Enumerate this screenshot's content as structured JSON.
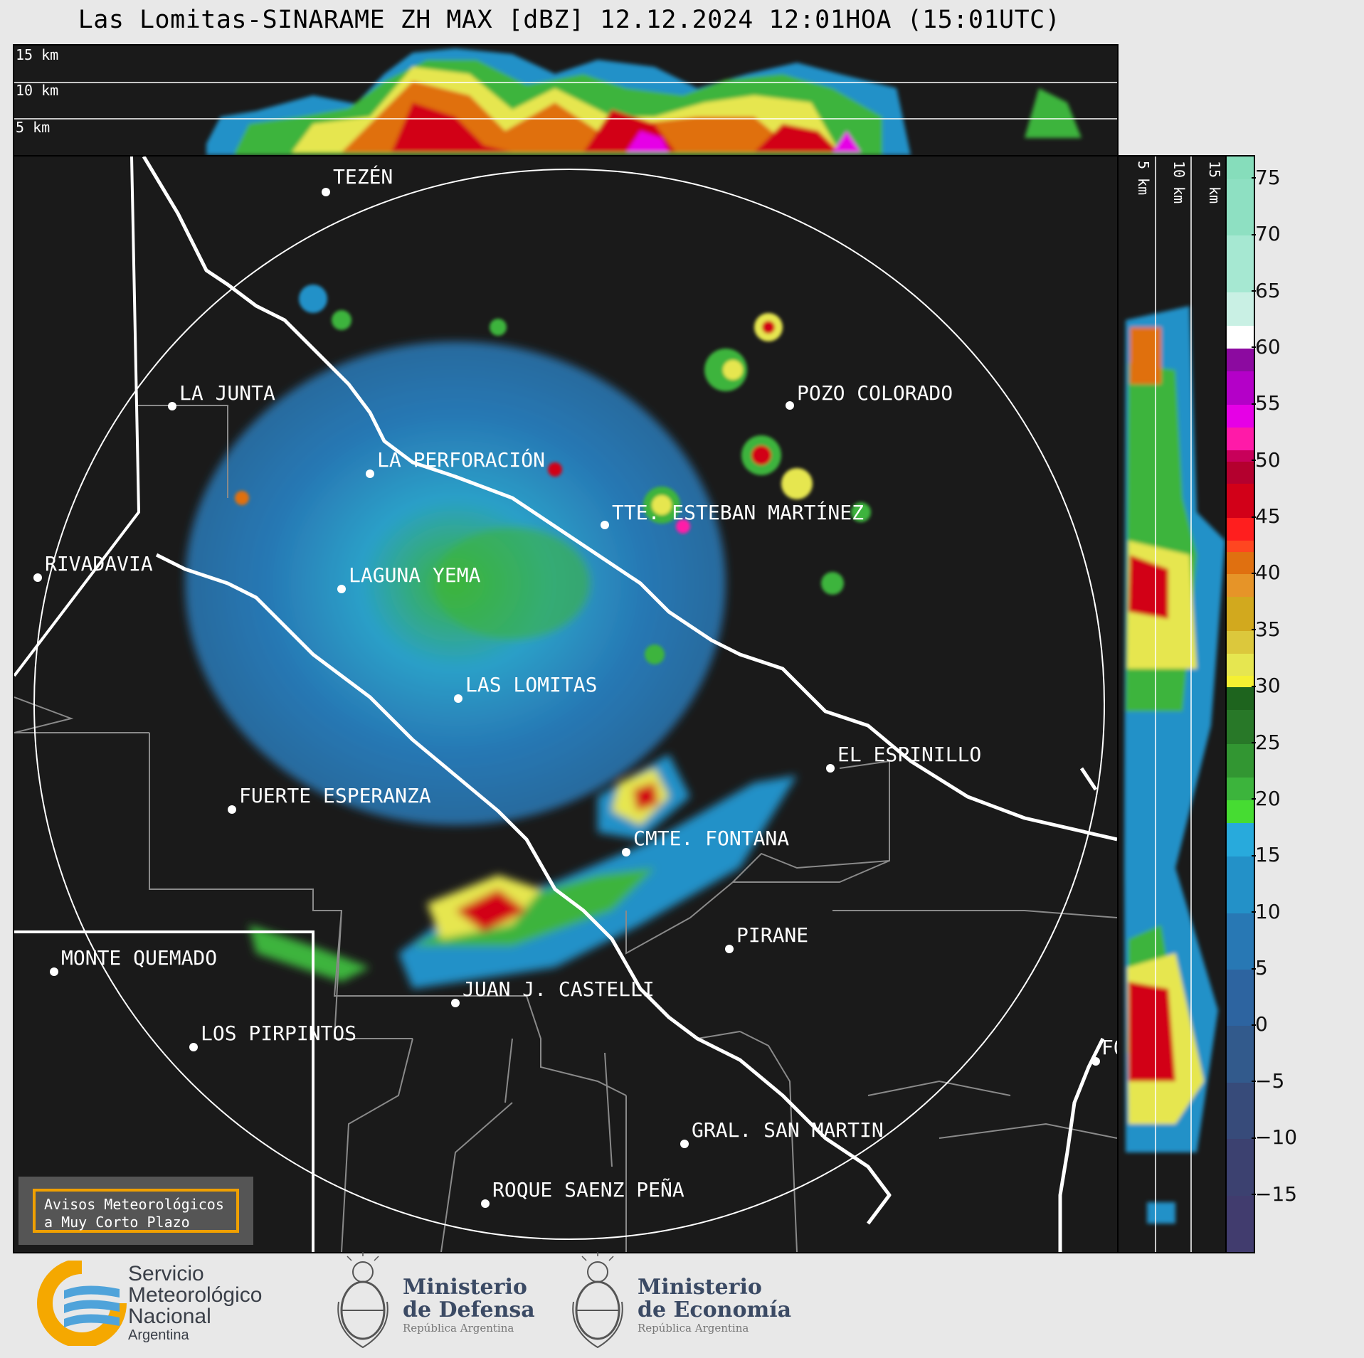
{
  "title": "Las Lomitas-SINARAME ZH MAX [dBZ] 12.12.2024 12:01HOA (15:01UTC)",
  "top_profile": {
    "height_labels": [
      "15 km",
      "10 km",
      "5 km"
    ]
  },
  "side_profile": {
    "height_labels": [
      "5 km",
      "10 km",
      "15 km"
    ]
  },
  "colorbar": {
    "ticks": [
      "75",
      "70",
      "65",
      "60",
      "55",
      "50",
      "45",
      "40",
      "35",
      "30",
      "25",
      "20",
      "15",
      "10",
      "5",
      "0",
      "−5",
      "−10",
      "−15"
    ],
    "segments": [
      {
        "from": 75,
        "to": 77,
        "color": "#86ddbb"
      },
      {
        "from": 70,
        "to": 75,
        "color": "#8ee0c2"
      },
      {
        "from": 65,
        "to": 70,
        "color": "#a6e8d2"
      },
      {
        "from": 62,
        "to": 65,
        "color": "#c9f0e4"
      },
      {
        "from": 60,
        "to": 62,
        "color": "#ffffff"
      },
      {
        "from": 58,
        "to": 60,
        "color": "#8c0aa0"
      },
      {
        "from": 55,
        "to": 58,
        "color": "#b400c8"
      },
      {
        "from": 53,
        "to": 55,
        "color": "#e600e6"
      },
      {
        "from": 51,
        "to": 53,
        "color": "#ff1aa8"
      },
      {
        "from": 50,
        "to": 51,
        "color": "#c8005a"
      },
      {
        "from": 48,
        "to": 50,
        "color": "#b4002e"
      },
      {
        "from": 45,
        "to": 48,
        "color": "#d20018"
      },
      {
        "from": 43,
        "to": 45,
        "color": "#ff1e1e"
      },
      {
        "from": 42,
        "to": 43,
        "color": "#ff4620"
      },
      {
        "from": 40,
        "to": 42,
        "color": "#e07010"
      },
      {
        "from": 38,
        "to": 40,
        "color": "#e69428"
      },
      {
        "from": 35,
        "to": 38,
        "color": "#d2a91e"
      },
      {
        "from": 33,
        "to": 35,
        "color": "#dcc83c"
      },
      {
        "from": 31,
        "to": 33,
        "color": "#e6e650"
      },
      {
        "from": 30,
        "to": 31,
        "color": "#f5f032"
      },
      {
        "from": 28,
        "to": 30,
        "color": "#1e641e"
      },
      {
        "from": 25,
        "to": 28,
        "color": "#287828"
      },
      {
        "from": 22,
        "to": 25,
        "color": "#329632"
      },
      {
        "from": 20,
        "to": 22,
        "color": "#3cb43c"
      },
      {
        "from": 18,
        "to": 20,
        "color": "#46dc32"
      },
      {
        "from": 15,
        "to": 18,
        "color": "#28aadc"
      },
      {
        "from": 10,
        "to": 15,
        "color": "#2391c8"
      },
      {
        "from": 5,
        "to": 10,
        "color": "#2878b4"
      },
      {
        "from": 0,
        "to": 5,
        "color": "#2d64a0"
      },
      {
        "from": -5,
        "to": 0,
        "color": "#325a8c"
      },
      {
        "from": -10,
        "to": -5,
        "color": "#374b7a"
      },
      {
        "from": -15,
        "to": -10,
        "color": "#3c4170"
      },
      {
        "from": -20,
        "to": -15,
        "color": "#413c6e"
      }
    ]
  },
  "map": {
    "localities": [
      {
        "name": "TEZÉN"
      },
      {
        "name": "LA JUNTA"
      },
      {
        "name": "POZO COLORADO"
      },
      {
        "name": "LA PERFORACIÓN"
      },
      {
        "name": "TTE. ESTEBAN MARTÍNEZ"
      },
      {
        "name": "RIVADAVIA"
      },
      {
        "name": "LAGUNA YEMA"
      },
      {
        "name": "LAS LOMITAS"
      },
      {
        "name": "EL ESPINILLO"
      },
      {
        "name": "FUERTE ESPERANZA"
      },
      {
        "name": "CMTE. FONTANA"
      },
      {
        "name": "PIRANE"
      },
      {
        "name": "MONTE QUEMADO"
      },
      {
        "name": "JUAN J. CASTELLI"
      },
      {
        "name": "LOS PIRPINTOS"
      },
      {
        "name": "GRAL. SAN MARTIN"
      },
      {
        "name": "ROQUE SAENZ PEÑA"
      },
      {
        "name": "FORMOSA"
      }
    ]
  },
  "warning_box": {
    "line1": "Avisos Meteorológicos",
    "line2": "a Muy Corto Plazo"
  },
  "logos": {
    "smn": {
      "line1": "Servicio",
      "line2": "Meteorológico",
      "line3": "Nacional",
      "line4": "Argentina"
    },
    "defensa": {
      "line1": "Ministerio",
      "line2": "de Defensa",
      "line3": "República Argentina"
    },
    "economia": {
      "line1": "Ministerio",
      "line2": "de Economía",
      "line3": "República Argentina"
    }
  }
}
